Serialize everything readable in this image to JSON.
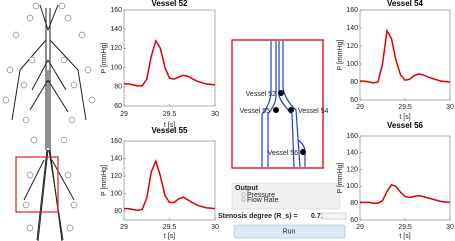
{
  "chart_data": [
    {
      "type": "line",
      "title": "Vessel 52",
      "xlabel": "t [s]",
      "ylabel": "P [mmHg]",
      "x": [
        29,
        29.05,
        29.1,
        29.15,
        29.2,
        29.25,
        29.3,
        29.35,
        29.4,
        29.45,
        29.5,
        29.55,
        29.6,
        29.65,
        29.7,
        29.8,
        29.9,
        30
      ],
      "series": [
        {
          "color": "#e00000",
          "values": [
            83,
            83,
            82,
            81,
            81,
            88,
            112,
            128,
            120,
            100,
            89,
            88,
            90,
            92,
            91,
            86,
            83,
            82
          ]
        }
      ],
      "xlim": [
        29,
        30
      ],
      "ylim": [
        60,
        160
      ],
      "xticks": [
        29,
        29.5,
        30
      ],
      "yticks": [
        60,
        80,
        100,
        120,
        140,
        160
      ]
    },
    {
      "type": "line",
      "title": "Vessel 54",
      "xlabel": "t [s]",
      "ylabel": "P [mmHg]",
      "x": [
        29,
        29.05,
        29.1,
        29.15,
        29.2,
        29.25,
        29.3,
        29.35,
        29.4,
        29.45,
        29.5,
        29.55,
        29.6,
        29.65,
        29.7,
        29.8,
        29.9,
        30
      ],
      "series": [
        {
          "color": "#e00000",
          "values": [
            81,
            81,
            80,
            79,
            80,
            100,
            137,
            128,
            104,
            88,
            82,
            83,
            87,
            89,
            88,
            84,
            81,
            80
          ]
        }
      ],
      "xlim": [
        29,
        30
      ],
      "ylim": [
        60,
        160
      ],
      "xticks": [
        29,
        29.5,
        30
      ],
      "yticks": [
        60,
        80,
        100,
        120,
        140,
        160
      ]
    },
    {
      "type": "line",
      "title": "Vessel 55",
      "xlabel": "t [s]",
      "ylabel": "P [mmHg]",
      "x": [
        29,
        29.05,
        29.1,
        29.15,
        29.2,
        29.25,
        29.3,
        29.35,
        29.4,
        29.45,
        29.5,
        29.55,
        29.6,
        29.65,
        29.7,
        29.8,
        29.9,
        30
      ],
      "series": [
        {
          "color": "#e00000",
          "values": [
            83,
            83,
            82,
            81,
            82,
            95,
            125,
            137,
            120,
            98,
            90,
            90,
            94,
            96,
            93,
            87,
            84,
            83
          ]
        }
      ],
      "xlim": [
        29,
        30
      ],
      "ylim": [
        70,
        160
      ],
      "xticks": [
        29,
        29.5,
        30
      ],
      "yticks": [
        80,
        100,
        120,
        140,
        160
      ]
    },
    {
      "type": "line",
      "title": "Vessel 56",
      "xlabel": "t [s]",
      "ylabel": "P [mmHg]",
      "x": [
        29,
        29.05,
        29.1,
        29.15,
        29.2,
        29.25,
        29.3,
        29.35,
        29.4,
        29.45,
        29.5,
        29.55,
        29.6,
        29.65,
        29.7,
        29.8,
        29.9,
        30
      ],
      "series": [
        {
          "color": "#e00000",
          "values": [
            81,
            81,
            81,
            80,
            80,
            83,
            94,
            102,
            100,
            93,
            88,
            87,
            88,
            89,
            88,
            85,
            82,
            81
          ]
        }
      ],
      "xlim": [
        29,
        30
      ],
      "ylim": [
        60,
        160
      ],
      "xticks": [
        29,
        29.5,
        30
      ],
      "yticks": [
        60,
        80,
        100,
        120,
        140,
        160
      ]
    }
  ],
  "ui": {
    "zoom_labels": [
      "Vessel 52",
      "Vessel 55",
      "Vessel 54",
      "Vessel 56"
    ],
    "output_label": "Output",
    "checkboxes": [
      "Pressure",
      "Flow Rate"
    ],
    "stenosis_label": "Stenosis degree (R_s) =",
    "stenosis_value": 0.71,
    "button": "Run"
  }
}
